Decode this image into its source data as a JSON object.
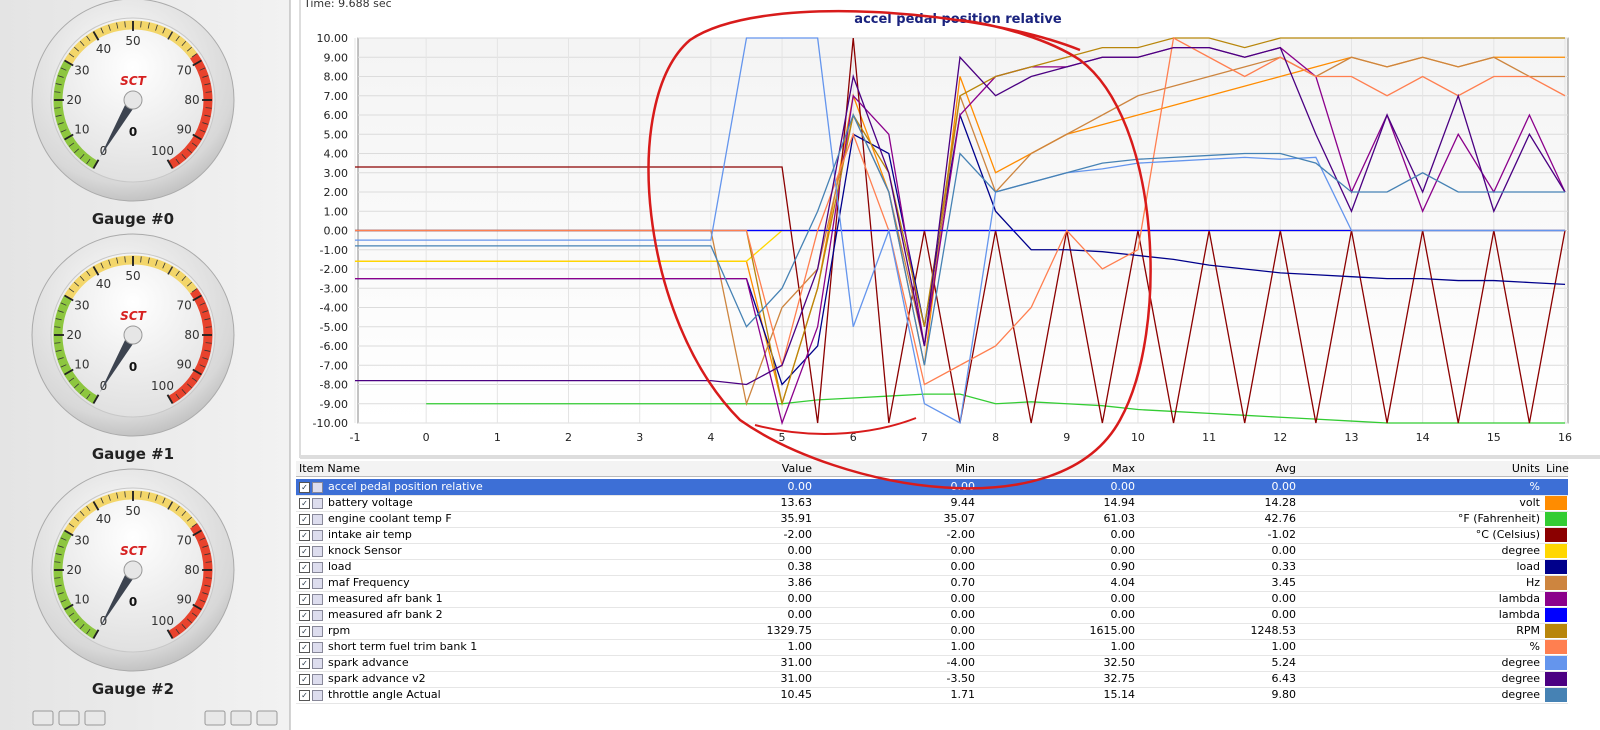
{
  "time_label": "Time: 9.688 sec",
  "gauges": [
    {
      "label": "Gauge #0",
      "brand": "SCT",
      "value": 0,
      "ticks": [
        0,
        10,
        20,
        30,
        40,
        50,
        70,
        80,
        90,
        100
      ]
    },
    {
      "label": "Gauge #1",
      "brand": "SCT",
      "value": 0,
      "ticks": [
        0,
        10,
        20,
        30,
        40,
        50,
        70,
        80,
        90,
        100
      ]
    },
    {
      "label": "Gauge #2",
      "brand": "SCT",
      "value": 0,
      "ticks": [
        0,
        10,
        20,
        30,
        40,
        50,
        70,
        80,
        90,
        100
      ]
    }
  ],
  "chart_data": {
    "type": "line",
    "title": "accel pedal position relative",
    "grid": true,
    "xlim": [
      -1,
      16
    ],
    "xticks": [
      -1,
      0,
      1,
      2,
      3,
      4,
      5,
      6,
      7,
      8,
      9,
      10,
      11,
      12,
      13,
      14,
      15,
      16
    ],
    "ylim": [
      -10,
      10
    ],
    "yticks": [
      {
        "value": -10,
        "label": "-10.00"
      },
      {
        "value": -9,
        "label": "-9.00"
      },
      {
        "value": -8,
        "label": "-8.00"
      },
      {
        "value": -7,
        "label": "-7.00"
      },
      {
        "value": -6,
        "label": "-6.00"
      },
      {
        "value": -5,
        "label": "-5.00"
      },
      {
        "value": -4,
        "label": "-4.00"
      },
      {
        "value": -3,
        "label": "-3.00"
      },
      {
        "value": -2,
        "label": "-2.00"
      },
      {
        "value": -1,
        "label": "-1.00"
      },
      {
        "value": 0,
        "label": "0.00"
      },
      {
        "value": 1,
        "label": "1.00"
      },
      {
        "value": 2,
        "label": "2.00"
      },
      {
        "value": 3,
        "label": "3.00"
      },
      {
        "value": 4,
        "label": "4.00"
      },
      {
        "value": 5,
        "label": "5.00"
      },
      {
        "value": 6,
        "label": "6.00"
      },
      {
        "value": 7,
        "label": "7.00"
      },
      {
        "value": 8,
        "label": "8.00"
      },
      {
        "value": 9,
        "label": "9.00"
      },
      {
        "value": 10,
        "label": "10.00"
      }
    ],
    "x": [
      -1,
      -0.5,
      0,
      0.5,
      1,
      1.5,
      2,
      2.5,
      3,
      3.5,
      4,
      4.5,
      5,
      5.5,
      6,
      6.5,
      7,
      7.5,
      8,
      8.5,
      9,
      9.5,
      10,
      10.5,
      11,
      11.5,
      12,
      12.5,
      13,
      13.5,
      14,
      14.5,
      15,
      15.5,
      16
    ],
    "series": [
      {
        "name": "accel pedal position relative",
        "color": "#1a1a6e",
        "values": [
          0,
          0,
          0,
          0,
          0,
          0,
          0,
          0,
          0,
          0,
          0,
          0,
          0,
          0,
          0,
          0,
          0,
          0,
          0,
          0,
          0,
          0,
          0,
          0,
          0,
          0,
          0,
          0,
          0,
          0,
          0,
          0,
          0,
          0,
          0
        ]
      },
      {
        "name": "battery voltage",
        "color": "#ff8c00",
        "values": [
          -1.6,
          -1.6,
          -1.6,
          -1.6,
          -1.6,
          -1.6,
          -1.6,
          -1.6,
          -1.6,
          -1.6,
          -1.6,
          -1.6,
          -9,
          -3,
          7,
          2,
          -7,
          8,
          3,
          4,
          5,
          5.5,
          6,
          6.5,
          7,
          7.5,
          8,
          8.5,
          9,
          8.5,
          9,
          8.5,
          9,
          9,
          9
        ]
      },
      {
        "name": "engine coolant temp F",
        "color": "#33cc33",
        "values": [
          null,
          null,
          -9,
          -9,
          -9,
          -9,
          -9,
          -9,
          -9,
          -9,
          -9,
          -9,
          -9,
          -8.8,
          -8.7,
          -8.6,
          -8.5,
          -8.5,
          -9,
          -8.9,
          -9,
          -9.1,
          -9.3,
          -9.4,
          -9.5,
          -9.6,
          -9.7,
          -9.8,
          -9.9,
          -10,
          -10,
          -10,
          -10,
          -10,
          -10
        ]
      },
      {
        "name": "intake air temp",
        "color": "#8b0000",
        "values": [
          3.3,
          3.3,
          3.3,
          3.3,
          3.3,
          3.3,
          3.3,
          3.3,
          3.3,
          3.3,
          3.3,
          3.3,
          3.3,
          -10,
          10,
          -10,
          0,
          -10,
          0,
          -10,
          0,
          -10,
          0,
          -10,
          0,
          -10,
          0,
          -10,
          0,
          -10,
          0,
          -10,
          0,
          -10,
          0
        ]
      },
      {
        "name": "knock Sensor",
        "color": "#ffd700",
        "values": [
          -1.6,
          -1.6,
          -1.6,
          -1.6,
          -1.6,
          -1.6,
          -1.6,
          -1.6,
          -1.6,
          -1.6,
          -1.6,
          -1.6,
          0,
          0,
          0,
          0,
          0,
          0,
          0,
          0,
          0,
          0,
          0,
          0,
          0,
          0,
          0,
          0,
          0,
          0,
          0,
          0,
          0,
          0,
          0
        ]
      },
      {
        "name": "load",
        "color": "#00008b",
        "values": [
          -2.5,
          -2.5,
          -2.5,
          -2.5,
          -2.5,
          -2.5,
          -2.5,
          -2.5,
          -2.5,
          -2.5,
          -2.5,
          -2.5,
          -8,
          -6,
          5,
          4,
          -5,
          6,
          1,
          -1,
          -1,
          -1.1,
          -1.3,
          -1.5,
          -1.8,
          -2,
          -2.2,
          -2.3,
          -2.4,
          -2.5,
          -2.5,
          -2.6,
          -2.6,
          -2.7,
          -2.8
        ]
      },
      {
        "name": "maf Frequency",
        "color": "#cd853f",
        "values": [
          0,
          0,
          0,
          0,
          0,
          0,
          0,
          0,
          0,
          0,
          0,
          -9,
          -4,
          -2,
          6,
          2,
          -6,
          7,
          2,
          4,
          5,
          6,
          7,
          7.5,
          8,
          8.5,
          9,
          8,
          9,
          8.5,
          9,
          8.5,
          9,
          8,
          8
        ]
      },
      {
        "name": "measured afr bank 1",
        "color": "#8b008b",
        "values": [
          -2.5,
          -2.5,
          -2.5,
          -2.5,
          -2.5,
          -2.5,
          -2.5,
          -2.5,
          -2.5,
          -2.5,
          -2.5,
          -2.5,
          -10,
          -5,
          7,
          5,
          -6,
          6,
          8,
          8.5,
          8.5,
          9,
          9,
          9.5,
          9.5,
          9,
          9.5,
          8,
          2,
          6,
          1,
          5,
          2,
          6,
          2
        ]
      },
      {
        "name": "measured afr bank 2",
        "color": "#0000ff",
        "values": [
          0,
          0,
          0,
          0,
          0,
          0,
          0,
          0,
          0,
          0,
          0,
          0,
          0,
          0,
          0,
          0,
          0,
          0,
          0,
          0,
          0,
          0,
          0,
          0,
          0,
          0,
          0,
          0,
          0,
          0,
          0,
          0,
          0,
          0,
          0
        ]
      },
      {
        "name": "rpm",
        "color": "#b8860b",
        "values": [
          0,
          0,
          0,
          0,
          0,
          0,
          0,
          0,
          0,
          0,
          0,
          0,
          -9,
          -3,
          6,
          3,
          -5,
          7,
          8,
          8.5,
          9,
          9.5,
          9.5,
          10,
          10,
          9.5,
          10,
          10,
          10,
          10,
          10,
          10,
          10,
          10,
          10
        ]
      },
      {
        "name": "short term fuel trim bank 1",
        "color": "#ff7f50",
        "values": [
          0,
          0,
          0,
          0,
          0,
          0,
          0,
          0,
          0,
          0,
          0,
          0,
          -7,
          0,
          5,
          0,
          -8,
          -7,
          -6,
          -4,
          0,
          -2,
          -1,
          10,
          9,
          8,
          9,
          8,
          8,
          7,
          8,
          7,
          8,
          8,
          7
        ]
      },
      {
        "name": "spark advance",
        "color": "#6495ed",
        "values": [
          -0.5,
          -0.5,
          -0.5,
          -0.5,
          -0.5,
          -0.5,
          -0.5,
          -0.5,
          -0.5,
          -0.5,
          -0.5,
          10,
          10,
          10,
          -5,
          0,
          -9,
          -10,
          2,
          2.5,
          3,
          3.2,
          3.5,
          3.6,
          3.7,
          3.8,
          3.7,
          3.8,
          0,
          0,
          0,
          0,
          0,
          0,
          0
        ]
      },
      {
        "name": "spark advance v2",
        "color": "#4b0082",
        "values": [
          -7.8,
          -7.8,
          -7.8,
          -7.8,
          -7.8,
          -7.8,
          -7.8,
          -7.8,
          -7.8,
          -7.8,
          -7.8,
          -8,
          -7,
          -2,
          8,
          3,
          -6,
          9,
          7,
          8,
          8.5,
          9,
          9,
          9.5,
          9.5,
          9,
          9.5,
          5,
          1,
          6,
          2,
          7,
          1,
          5,
          2
        ]
      },
      {
        "name": "throttle angle Actual",
        "color": "#4682b4",
        "values": [
          -0.8,
          -0.8,
          -0.8,
          -0.8,
          -0.8,
          -0.8,
          -0.8,
          -0.8,
          -0.8,
          -0.8,
          -0.8,
          -5,
          -3,
          1,
          6,
          2,
          -7,
          4,
          2,
          2.5,
          3,
          3.5,
          3.7,
          3.8,
          3.9,
          4,
          4,
          3.5,
          2,
          2,
          3,
          2,
          2,
          2,
          2
        ]
      }
    ]
  },
  "table": {
    "header": [
      "Item Name",
      "Value",
      "Min",
      "Max",
      "Avg",
      "Units",
      "Line"
    ],
    "rows": [
      [
        "0.00",
        "0.00",
        "0.00",
        "0.00",
        "%"
      ],
      [
        "13.63",
        "9.44",
        "14.94",
        "14.28",
        "volt"
      ],
      [
        "35.91",
        "35.07",
        "61.03",
        "42.76",
        "°F (Fahrenheit)"
      ],
      [
        "-2.00",
        "-2.00",
        "0.00",
        "-1.02",
        "°C (Celsius)"
      ],
      [
        "0.00",
        "0.00",
        "0.00",
        "0.00",
        "degree"
      ],
      [
        "0.38",
        "0.00",
        "0.90",
        "0.33",
        "load"
      ],
      [
        "3.86",
        "0.70",
        "4.04",
        "3.45",
        "Hz"
      ],
      [
        "0.00",
        "0.00",
        "0.00",
        "0.00",
        "lambda"
      ],
      [
        "0.00",
        "0.00",
        "0.00",
        "0.00",
        "lambda"
      ],
      [
        "1329.75",
        "0.00",
        "1615.00",
        "1248.53",
        "RPM"
      ],
      [
        "1.00",
        "1.00",
        "1.00",
        "1.00",
        "%"
      ],
      [
        "31.00",
        "-4.00",
        "32.50",
        "5.24",
        "degree"
      ],
      [
        "31.00",
        "-3.50",
        "32.75",
        "6.43",
        "degree"
      ],
      [
        "10.45",
        "1.71",
        "15.14",
        "9.80",
        "degree"
      ]
    ]
  }
}
